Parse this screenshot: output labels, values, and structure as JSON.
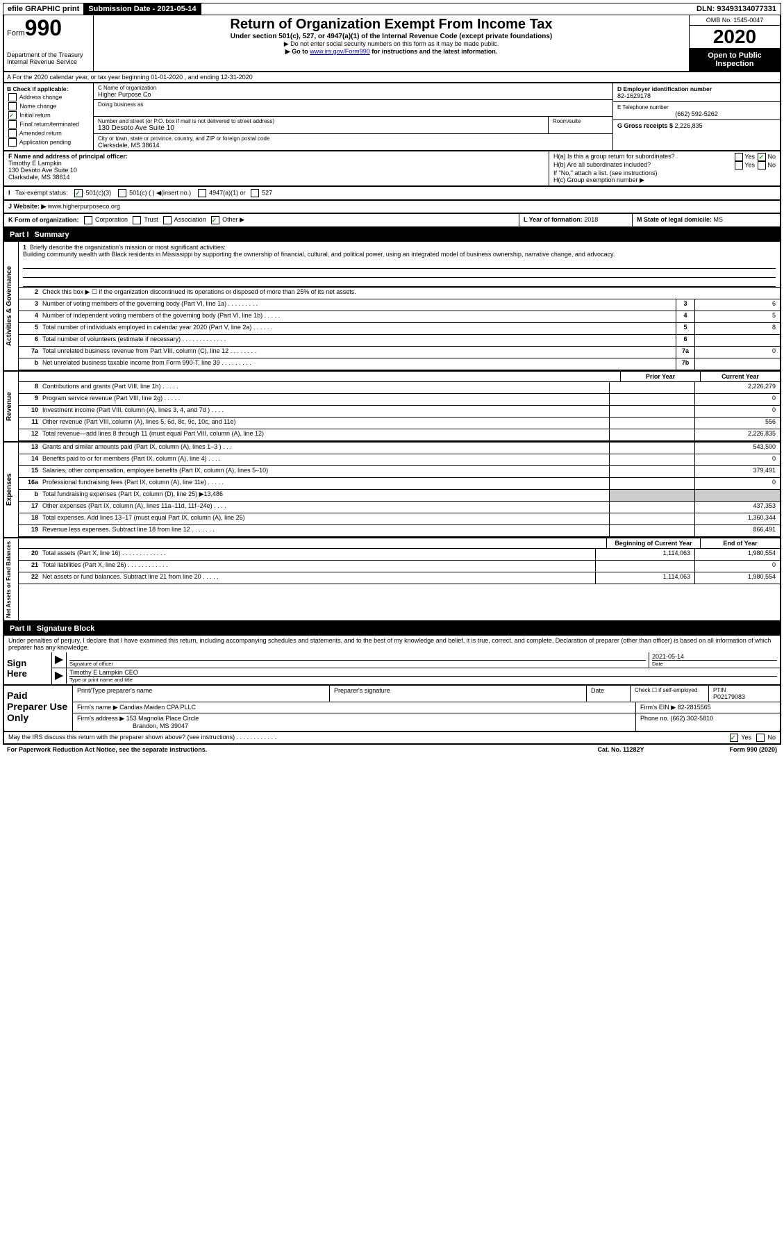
{
  "top": {
    "efile": "efile GRAPHIC print",
    "submit_label": "Submission Date - ",
    "submit_date": "2021-05-14",
    "dln_label": "DLN: ",
    "dln": "93493134077331"
  },
  "header": {
    "form_word": "Form",
    "form_number": "990",
    "dept1": "Department of the Treasury",
    "dept2": "Internal Revenue Service",
    "title": "Return of Organization Exempt From Income Tax",
    "sub": "Under section 501(c), 527, or 4947(a)(1) of the Internal Revenue Code (except private foundations)",
    "line1": "▶ Do not enter social security numbers on this form as it may be made public.",
    "line2a": "▶ Go to ",
    "line2_link": "www.irs.gov/Form990",
    "line2b": " for instructions and the latest information.",
    "omb": "OMB No. 1545-0047",
    "year": "2020",
    "open": "Open to Public Inspection"
  },
  "sectionA": "A For the 2020 calendar year, or tax year beginning 01-01-2020   , and ending 12-31-2020",
  "sectionB": {
    "check_label": "B Check if applicable:",
    "opts": [
      "Address change",
      "Name change",
      "Initial return",
      "Final return/terminated",
      "Amended return",
      "Application pending"
    ],
    "checked_idx": 2,
    "c_label": "C Name of organization",
    "c_name": "Higher Purpose Co",
    "dba_label": "Doing business as",
    "addr_label": "Number and street (or P.O. box if mail is not delivered to street address)",
    "addr": "130 Desoto Ave Suite 10",
    "room_label": "Room/suite",
    "city_label": "City or town, state or province, country, and ZIP or foreign postal code",
    "city": "Clarksdale, MS  38614",
    "d_label": "D Employer identification number",
    "ein": "82-1629178",
    "e_label": "E Telephone number",
    "phone": "(662) 592-5262",
    "g_label": "G Gross receipts $ ",
    "g_val": "2,226,835"
  },
  "fgh": {
    "f_label": "F  Name and address of principal officer:",
    "f_name": "Timothy E Lampkin",
    "f_addr1": "130 Desoto Ave Suite 10",
    "f_addr2": "Clarksdale, MS  38614",
    "ha_label": "H(a)  Is this a group return for subordinates?",
    "ha_no": "No",
    "hb_label": "H(b)  Are all subordinates included?",
    "hb_note": "If \"No,\" attach a list. (see instructions)",
    "hc_label": "H(c)  Group exemption number ▶"
  },
  "status": {
    "i_label": "Tax-exempt status:",
    "opt1": "501(c)(3)",
    "opt2": "501(c) (  ) ◀(insert no.)",
    "opt3": "4947(a)(1) or",
    "opt4": "527"
  },
  "j": {
    "label": "J   Website: ▶  ",
    "val": "www.higherpurposeco.org"
  },
  "k": {
    "label": "K Form of organization:",
    "opts": [
      "Corporation",
      "Trust",
      "Association",
      "Other ▶"
    ],
    "checked_idx": 3,
    "l_label": "L Year of formation: ",
    "l_val": "2018",
    "m_label": "M State of legal domicile: ",
    "m_val": "MS"
  },
  "part1": {
    "part": "Part I",
    "title": "Summary",
    "briefly_num": "1",
    "briefly": "Briefly describe the organization's mission or most significant activities:",
    "mission": "Building community wealth with Black residents in Mississippi by supporting the ownership of financial, cultural, and political power, using an integrated model of business ownership, narrative change, and advocacy.",
    "line2": "Check this box ▶ ☐  if the organization discontinued its operations or disposed of more than 25% of its net assets.",
    "vert_gov": "Activities & Governance",
    "vert_rev": "Revenue",
    "vert_exp": "Expenses",
    "vert_net": "Net Assets or Fund Balances",
    "prior_year": "Prior Year",
    "current_year": "Current Year",
    "begin_year": "Beginning of Current Year",
    "end_year": "End of Year",
    "rows_gov": [
      {
        "n": "3",
        "t": "Number of voting members of the governing body (Part VI, line 1a)  .  .  .  .  .  .  .  .  .",
        "b": "3",
        "v": "6"
      },
      {
        "n": "4",
        "t": "Number of independent voting members of the governing body (Part VI, line 1b)  .  .  .  .  .",
        "b": "4",
        "v": "5"
      },
      {
        "n": "5",
        "t": "Total number of individuals employed in calendar year 2020 (Part V, line 2a)  .  .  .  .  .  .",
        "b": "5",
        "v": "8"
      },
      {
        "n": "6",
        "t": "Total number of volunteers (estimate if necessary)   .  .  .  .  .  .  .  .  .  .  .  .  .",
        "b": "6",
        "v": ""
      },
      {
        "n": "7a",
        "t": "Total unrelated business revenue from Part VIII, column (C), line 12  .  .  .  .  .  .  .  .",
        "b": "7a",
        "v": "0"
      },
      {
        "n": "b",
        "t": "Net unrelated business taxable income from Form 990-T, line 39  .  .  .  .  .  .  .  .  .",
        "b": "7b",
        "v": ""
      }
    ],
    "rows_rev": [
      {
        "n": "8",
        "t": "Contributions and grants (Part VIII, line 1h)  .  .  .  .  .",
        "p": "",
        "c": "2,226,279"
      },
      {
        "n": "9",
        "t": "Program service revenue (Part VIII, line 2g)  .  .  .  .  .",
        "p": "",
        "c": "0"
      },
      {
        "n": "10",
        "t": "Investment income (Part VIII, column (A), lines 3, 4, and 7d )  .  .  .  .",
        "p": "",
        "c": "0"
      },
      {
        "n": "11",
        "t": "Other revenue (Part VIII, column (A), lines 5, 6d, 8c, 9c, 10c, and 11e)",
        "p": "",
        "c": "556"
      },
      {
        "n": "12",
        "t": "Total revenue—add lines 8 through 11 (must equal Part VIII, column (A), line 12)",
        "p": "",
        "c": "2,226,835"
      }
    ],
    "rows_exp": [
      {
        "n": "13",
        "t": "Grants and similar amounts paid (Part IX, column (A), lines 1–3 )  .  .  .",
        "p": "",
        "c": "543,500"
      },
      {
        "n": "14",
        "t": "Benefits paid to or for members (Part IX, column (A), line 4)  .  .  .  .",
        "p": "",
        "c": "0"
      },
      {
        "n": "15",
        "t": "Salaries, other compensation, employee benefits (Part IX, column (A), lines 5–10)",
        "p": "",
        "c": "379,491"
      },
      {
        "n": "16a",
        "t": "Professional fundraising fees (Part IX, column (A), line 11e)  .  .  .  .  .",
        "p": "",
        "c": "0"
      },
      {
        "n": "b",
        "t": "Total fundraising expenses (Part IX, column (D), line 25) ▶13,486",
        "p": "shaded",
        "c": "shaded"
      },
      {
        "n": "17",
        "t": "Other expenses (Part IX, column (A), lines 11a–11d, 11f–24e)  .  .  .  .",
        "p": "",
        "c": "437,353"
      },
      {
        "n": "18",
        "t": "Total expenses. Add lines 13–17 (must equal Part IX, column (A), line 25)",
        "p": "",
        "c": "1,360,344"
      },
      {
        "n": "19",
        "t": "Revenue less expenses. Subtract line 18 from line 12 .  .  .  .  .  .  .",
        "p": "",
        "c": "866,491"
      }
    ],
    "rows_net": [
      {
        "n": "20",
        "t": "Total assets (Part X, line 16)  .  .  .  .  .  .  .  .  .  .  .  .  .",
        "p": "1,114,063",
        "c": "1,980,554"
      },
      {
        "n": "21",
        "t": "Total liabilities (Part X, line 26)  .  .  .  .  .  .  .  .  .  .  .  .",
        "p": "",
        "c": "0"
      },
      {
        "n": "22",
        "t": "Net assets or fund balances. Subtract line 21 from line 20  .  .  .  .  .",
        "p": "1,114,063",
        "c": "1,980,554"
      }
    ]
  },
  "part2": {
    "part": "Part II",
    "title": "Signature Block",
    "decl": "Under penalties of perjury, I declare that I have examined this return, including accompanying schedules and statements, and to the best of my knowledge and belief, it is true, correct, and complete. Declaration of preparer (other than officer) is based on all information of which preparer has any knowledge.",
    "sign_here": "Sign Here",
    "sig_of": "Signature of officer",
    "date_label": "Date",
    "date_val": "2021-05-14",
    "name_title": "Timothy E Lampkin  CEO",
    "type_label": "Type or print name and title"
  },
  "paid": {
    "label": "Paid Preparer Use Only",
    "print_name_label": "Print/Type preparer's name",
    "prep_sig_label": "Preparer's signature",
    "date_label": "Date",
    "check_if": "Check ☐  if self-employed",
    "ptin_label": "PTIN",
    "ptin": "P02179083",
    "firm_label": "Firm's name    ▶ ",
    "firm": "Candias Maiden CPA PLLC",
    "ein_label": "Firm's EIN ▶ ",
    "ein": "82-2815565",
    "addr_label": "Firm's address ▶ ",
    "addr1": "153 Magnolia Place Circle",
    "addr2": "Brandon, MS  39047",
    "phone_label": "Phone no. ",
    "phone": "(662) 302-5810"
  },
  "footer": {
    "may_discuss": "May the IRS discuss this return with the preparer shown above? (see instructions)  .  .  .  .  .  .  .  .  .  .  .  .",
    "yes": "Yes",
    "no": "No",
    "paperwork": "For Paperwork Reduction Act Notice, see the separate instructions.",
    "cat": "Cat. No. 11282Y",
    "form": "Form 990 (2020)"
  }
}
